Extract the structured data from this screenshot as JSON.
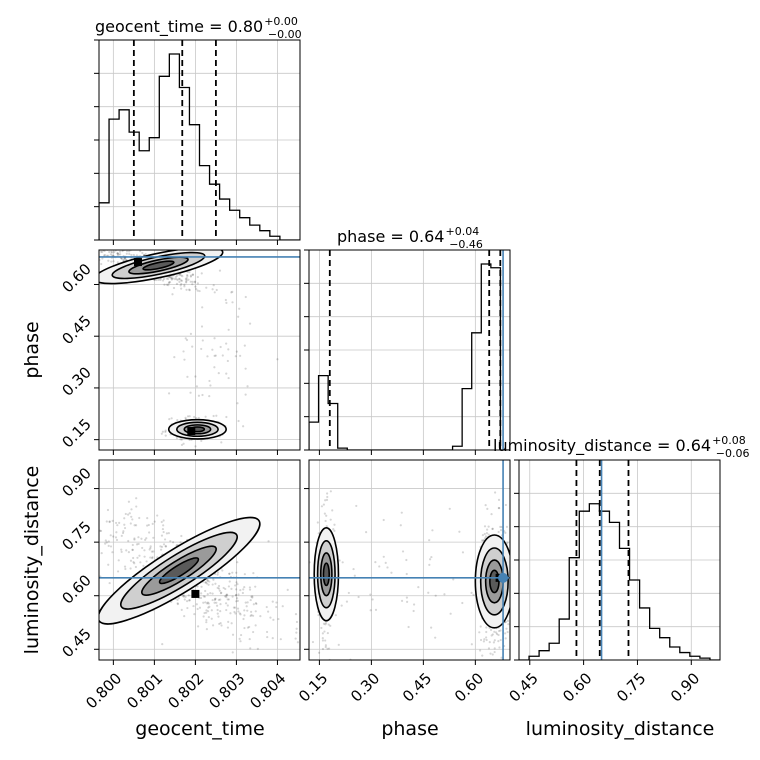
{
  "chart_data": {
    "type": "corner",
    "parameters": [
      "geocent_time",
      "phase",
      "luminosity_distance"
    ],
    "axis_labels": {
      "geocent_time": "geocent_time",
      "phase": "phase",
      "luminosity_distance": "luminosity_distance"
    },
    "titles": [
      {
        "param": "geocent_time",
        "text": "geocent_time = 0.80",
        "plus": "+0.00",
        "minus": "−0.00"
      },
      {
        "param": "phase",
        "text": "phase = 0.64",
        "plus": "+0.04",
        "minus": "−0.46"
      },
      {
        "param": "luminosity_distance",
        "text": "luminosity_distance = 0.64",
        "plus": "+0.08",
        "minus": "−0.06"
      }
    ],
    "ticks": {
      "geocent_time": [
        "0.800",
        "0.801",
        "0.802",
        "0.803",
        "0.804"
      ],
      "phase": [
        "0.15",
        "0.30",
        "0.45",
        "0.60"
      ],
      "luminosity_distance": [
        "0.45",
        "0.60",
        "0.75",
        "0.90"
      ]
    },
    "tick_values": {
      "geocent_time": [
        0.8,
        0.801,
        0.802,
        0.803,
        0.804
      ],
      "phase": [
        0.15,
        0.3,
        0.45,
        0.6
      ],
      "luminosity_distance": [
        0.45,
        0.6,
        0.75,
        0.9
      ]
    },
    "ranges": {
      "geocent_time": [
        0.79965,
        0.80455
      ],
      "phase": [
        0.12,
        0.7
      ],
      "luminosity_distance": [
        0.42,
        0.98
      ]
    },
    "truths": {
      "geocent_time": null,
      "phase": 0.68,
      "luminosity_distance": 0.65
    },
    "quantiles": {
      "geocent_time": [
        0.8005,
        0.80168,
        0.8025
      ],
      "phase": [
        0.18,
        0.64,
        0.672
      ],
      "luminosity_distance": [
        0.58,
        0.645,
        0.725
      ]
    },
    "histograms": {
      "geocent_time": [
        0.2,
        0.65,
        0.7,
        0.58,
        0.48,
        0.55,
        0.88,
        1.0,
        0.82,
        0.62,
        0.4,
        0.3,
        0.22,
        0.16,
        0.12,
        0.08,
        0.05,
        0.02,
        0.0,
        0.0
      ],
      "phase": [
        0.15,
        0.4,
        0.25,
        0.01,
        0.0,
        0.0,
        0.0,
        0.0,
        0.0,
        0.0,
        0.0,
        0.0,
        0.0,
        0.0,
        0.0,
        0.02,
        0.33,
        0.63,
        1.0,
        0.98,
        0.0
      ],
      "luminosity_distance": [
        0.0,
        0.02,
        0.05,
        0.09,
        0.22,
        0.55,
        0.8,
        0.84,
        0.8,
        0.74,
        0.6,
        0.43,
        0.28,
        0.17,
        0.12,
        0.07,
        0.04,
        0.02,
        0.01,
        0.0
      ]
    },
    "grid": true,
    "truth_color": "#4682b4",
    "contour_color": "#000000"
  }
}
